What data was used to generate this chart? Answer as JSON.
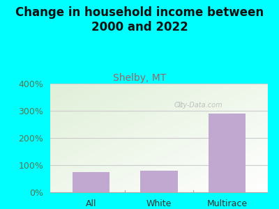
{
  "categories": [
    "All",
    "White",
    "Multirace"
  ],
  "values": [
    75,
    80,
    290
  ],
  "bar_color": "#c0a8d0",
  "title": "Change in household income between\n2000 and 2022",
  "subtitle": "Shelby, MT",
  "subtitle_color": "#996666",
  "title_color": "#111111",
  "title_fontsize": 12,
  "subtitle_fontsize": 10,
  "ylim": [
    0,
    400
  ],
  "yticks": [
    0,
    100,
    200,
    300,
    400
  ],
  "ytick_labels": [
    "0%",
    "100%",
    "200%",
    "300%",
    "400%"
  ],
  "background_color": "#00ffff",
  "plot_bg_color": "#e8f0e0",
  "watermark": "City-Data.com",
  "grid_color": "#cccccc",
  "bar_width": 0.55,
  "tick_label_fontsize": 9,
  "ytick_label_color": "#557755",
  "xtick_label_color": "#333333",
  "separator_color": "#aaaaaa",
  "bottom_line_color": "#aaaaaa"
}
